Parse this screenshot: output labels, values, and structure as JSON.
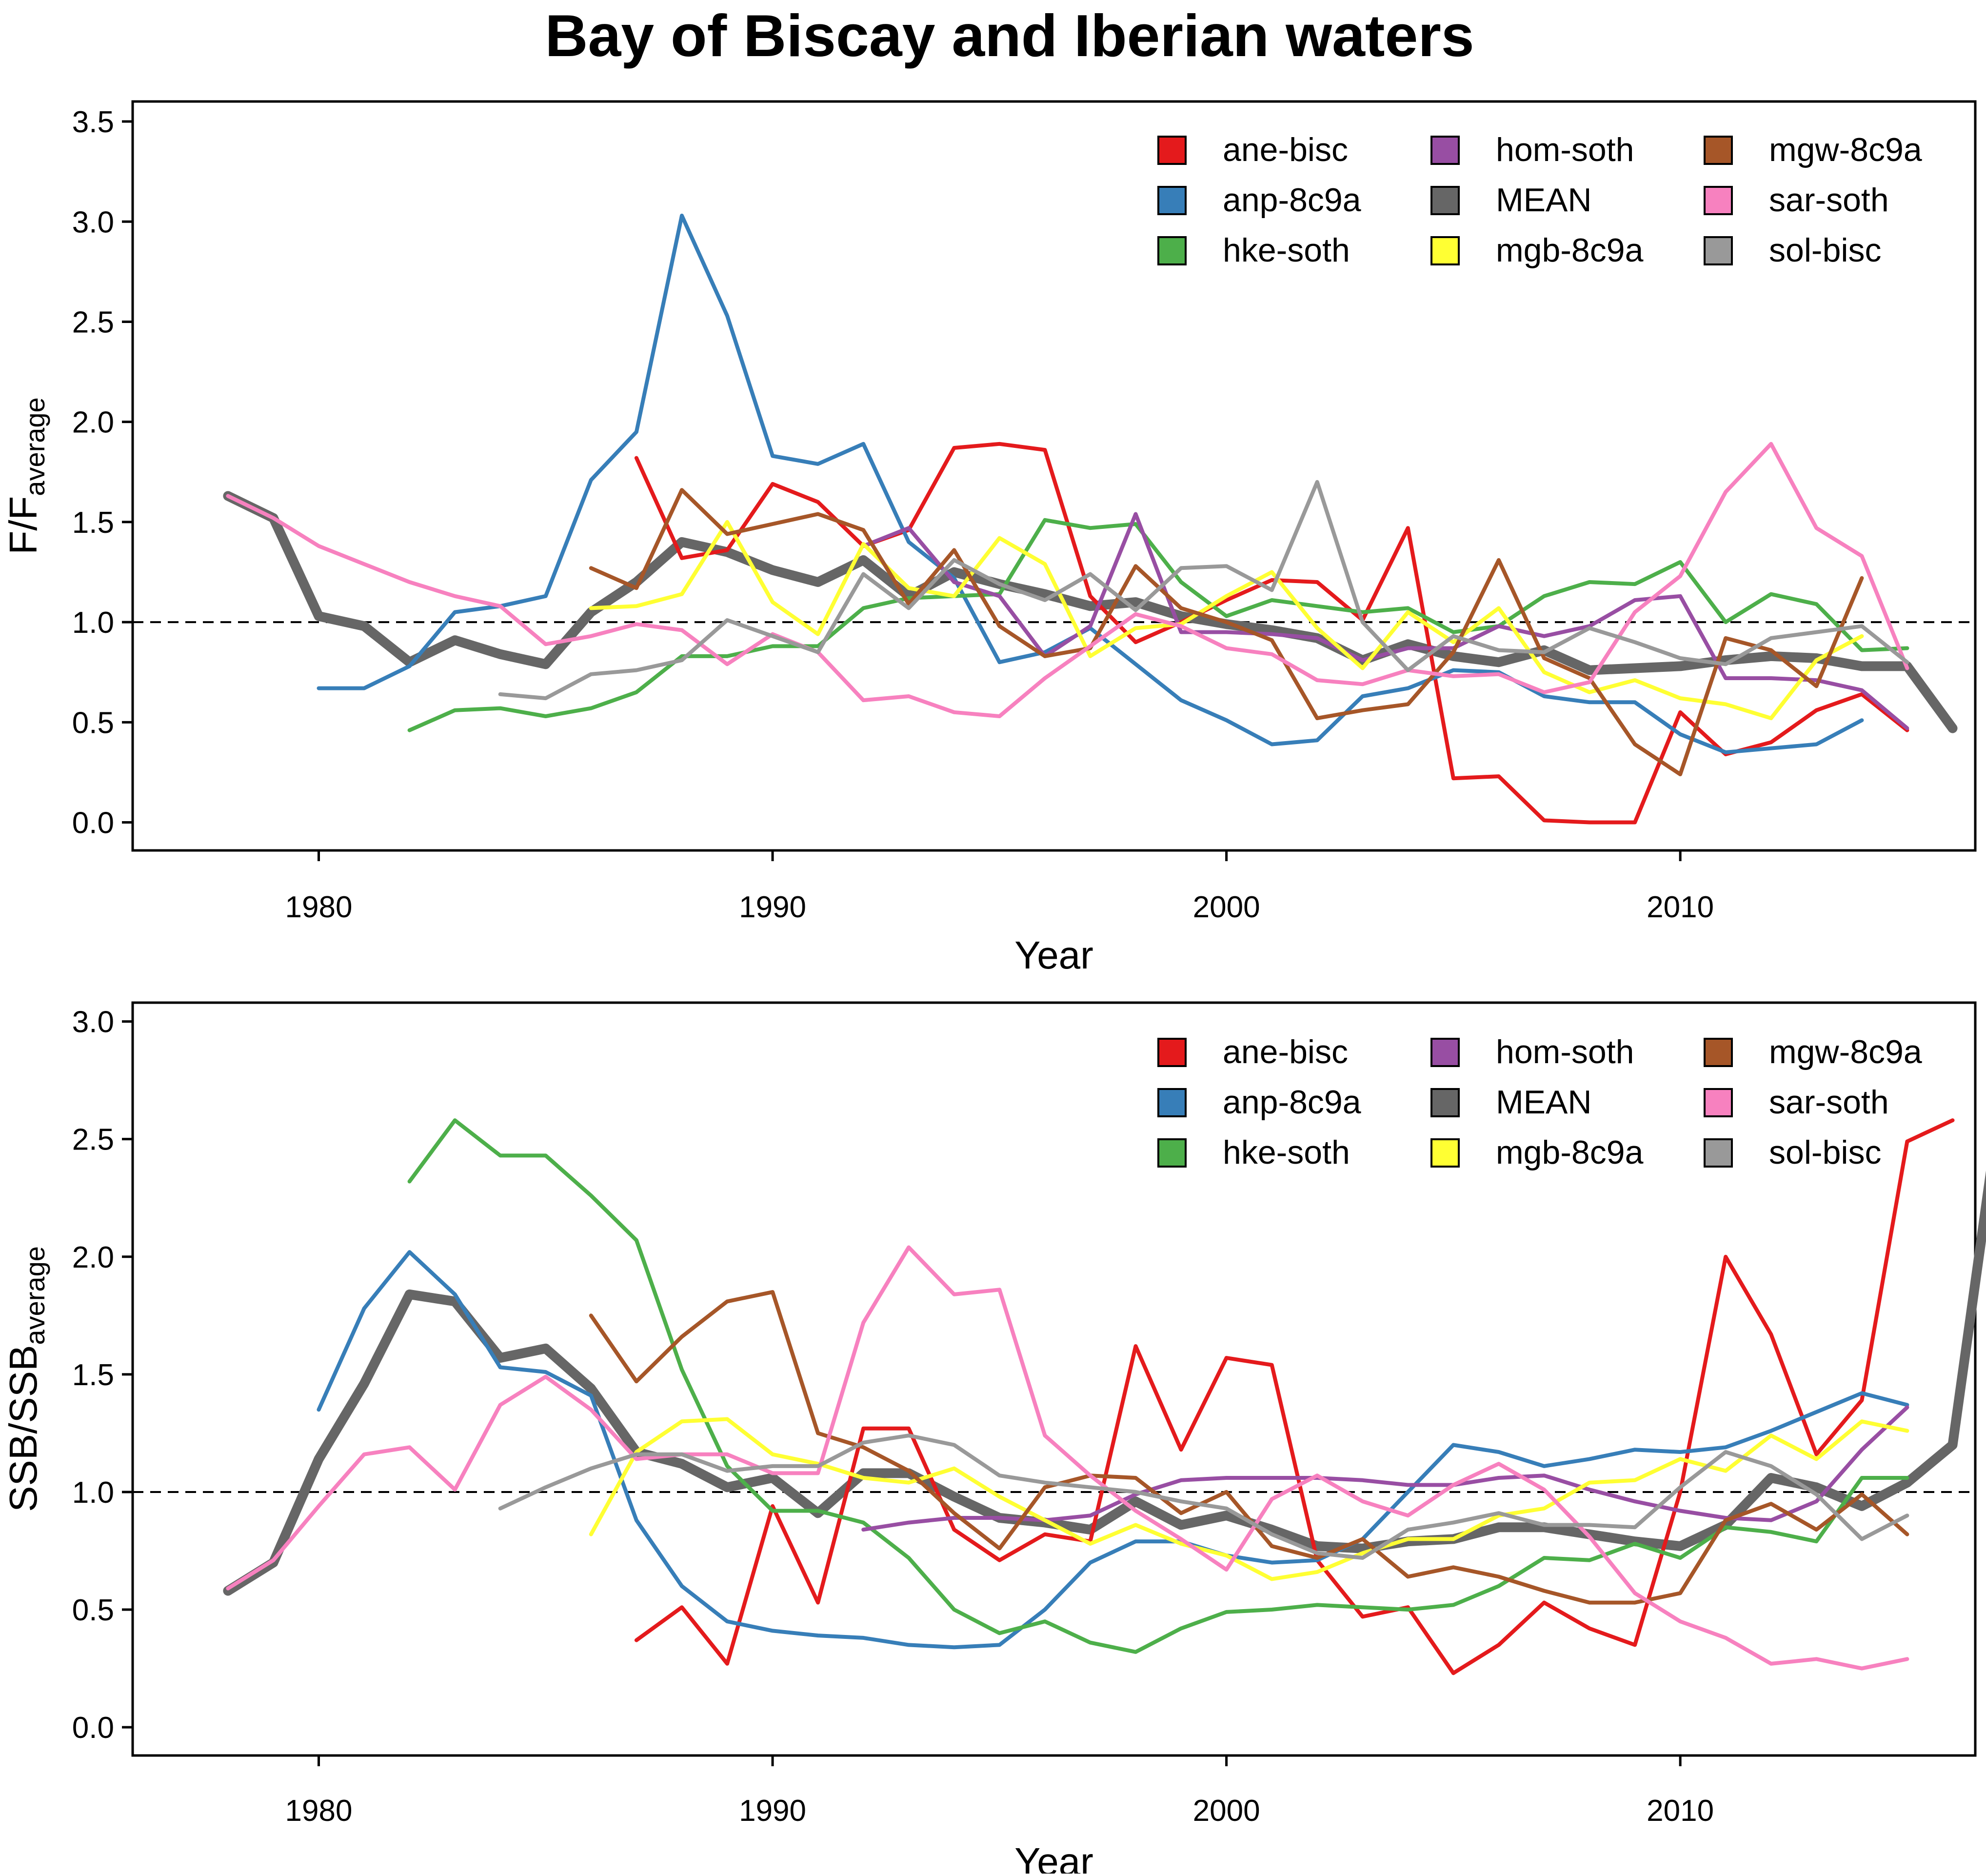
{
  "figure_title": "Bay of Biscay and Iberian waters",
  "colors": {
    "ane-bisc": "#e41a1c",
    "anp-8c9a": "#377eb8",
    "hke-soth": "#4daf4a",
    "hom-soth": "#984ea3",
    "MEAN": "#666666",
    "mgb-8c9a": "#ffff33",
    "mgw-8c9a": "#a65628",
    "sar-soth": "#f781bf",
    "sol-bisc": "#999999"
  },
  "legend": [
    "ane-bisc",
    "anp-8c9a",
    "hke-soth",
    "hom-soth",
    "MEAN",
    "mgb-8c9a",
    "mgw-8c9a",
    "sar-soth",
    "sol-bisc"
  ],
  "chart_data": [
    {
      "type": "line",
      "title": "",
      "xlabel": "Year",
      "ylabel_main": "F/F",
      "ylabel_sub": "average",
      "xlim": [
        1975.9,
        2016.5
      ],
      "ylim": [
        -0.14,
        3.6
      ],
      "xticks": [
        "1980",
        "1990",
        "2000",
        "2010"
      ],
      "yticks": [
        "0.0",
        "0.5",
        "1.0",
        "1.5",
        "2.0",
        "2.5",
        "3.0",
        "3.5"
      ],
      "reference_line": 1.0,
      "legend_position": "top-right",
      "series": [
        {
          "name": "ane-bisc",
          "start": 1987,
          "values": [
            1.82,
            1.32,
            1.36,
            1.69,
            1.6,
            1.38,
            1.46,
            1.87,
            1.89,
            1.86,
            1.13,
            0.9,
            1.0,
            1.11,
            1.21,
            1.2,
            1.01,
            1.47,
            0.22,
            0.23,
            0.01,
            0.0,
            0.0,
            0.55,
            0.34,
            0.4,
            0.56,
            0.64,
            0.46
          ]
        },
        {
          "name": "anp-8c9a",
          "start": 1980,
          "values": [
            0.67,
            0.67,
            0.78,
            1.05,
            1.08,
            1.13,
            1.71,
            1.95,
            3.03,
            2.53,
            1.83,
            1.79,
            1.89,
            1.4,
            1.22,
            0.8,
            0.85,
            0.97,
            0.79,
            0.61,
            0.51,
            0.39,
            0.41,
            0.63,
            0.67,
            0.76,
            0.75,
            0.63,
            0.6,
            0.6,
            0.44,
            0.35,
            0.37,
            0.39,
            0.51
          ]
        },
        {
          "name": "hke-soth",
          "start": 1982,
          "values": [
            0.46,
            0.56,
            0.57,
            0.53,
            0.57,
            0.65,
            0.83,
            0.83,
            0.88,
            0.88,
            1.07,
            1.12,
            1.13,
            1.14,
            1.51,
            1.47,
            1.49,
            1.2,
            1.03,
            1.11,
            1.08,
            1.05,
            1.07,
            0.95,
            0.98,
            1.13,
            1.2,
            1.19,
            1.3,
            1.0,
            1.14,
            1.09,
            0.86,
            0.87
          ]
        },
        {
          "name": "hom-soth",
          "start": 1992,
          "values": [
            1.38,
            1.47,
            1.2,
            1.13,
            0.83,
            0.98,
            1.54,
            0.95,
            0.95,
            0.94,
            0.92,
            0.81,
            0.87,
            0.87,
            0.98,
            0.93,
            0.98,
            1.11,
            1.13,
            0.72,
            0.72,
            0.71,
            0.66,
            0.47
          ]
        },
        {
          "name": "MEAN",
          "start": 1978,
          "values": [
            1.63,
            1.52,
            1.03,
            0.98,
            0.8,
            0.91,
            0.84,
            0.79,
            1.05,
            1.2,
            1.4,
            1.35,
            1.26,
            1.2,
            1.31,
            1.13,
            1.25,
            1.19,
            1.14,
            1.08,
            1.1,
            1.03,
            0.99,
            0.96,
            0.92,
            0.81,
            0.89,
            0.83,
            0.8,
            0.86,
            0.76,
            0.77,
            0.78,
            0.81,
            0.83,
            0.82,
            0.78,
            0.78,
            0.47
          ]
        },
        {
          "name": "mgb-8c9a",
          "start": 1986,
          "values": [
            1.07,
            1.08,
            1.14,
            1.5,
            1.1,
            0.94,
            1.39,
            1.17,
            1.13,
            1.42,
            1.29,
            0.83,
            0.97,
            0.99,
            1.13,
            1.25,
            0.97,
            0.77,
            1.05,
            0.9,
            1.07,
            0.75,
            0.65,
            0.71,
            0.62,
            0.59,
            0.52,
            0.81,
            0.93
          ]
        },
        {
          "name": "mgw-8c9a",
          "start": 1986,
          "values": [
            1.27,
            1.17,
            1.66,
            1.44,
            1.49,
            1.54,
            1.46,
            1.09,
            1.36,
            0.98,
            0.83,
            0.87,
            1.28,
            1.07,
            1.0,
            0.91,
            0.52,
            0.56,
            0.59,
            0.85,
            1.31,
            0.82,
            0.72,
            0.39,
            0.24,
            0.92,
            0.86,
            0.68,
            1.22
          ]
        },
        {
          "name": "sar-soth",
          "start": 1978,
          "values": [
            1.63,
            1.52,
            1.38,
            1.29,
            1.2,
            1.13,
            1.08,
            0.89,
            0.93,
            0.99,
            0.96,
            0.79,
            0.94,
            0.85,
            0.61,
            0.63,
            0.55,
            0.53,
            0.72,
            0.88,
            1.04,
            0.98,
            0.87,
            0.84,
            0.71,
            0.69,
            0.76,
            0.73,
            0.74,
            0.65,
            0.7,
            1.05,
            1.23,
            1.65,
            1.89,
            1.47,
            1.33,
            0.77
          ]
        },
        {
          "name": "sol-bisc",
          "start": 1984,
          "values": [
            0.64,
            0.62,
            0.74,
            0.76,
            0.81,
            1.01,
            0.93,
            0.85,
            1.24,
            1.07,
            1.31,
            1.19,
            1.11,
            1.24,
            1.06,
            1.27,
            1.28,
            1.16,
            1.7,
            1.0,
            0.76,
            0.93,
            0.86,
            0.85,
            0.97,
            0.9,
            0.82,
            0.79,
            0.92,
            0.95,
            0.98,
            0.8
          ]
        }
      ]
    },
    {
      "type": "line",
      "title": "",
      "xlabel": "Year",
      "ylabel_main": "SSB/SSB",
      "ylabel_sub": "average",
      "xlim": [
        1975.9,
        2016.5
      ],
      "ylim": [
        -0.12,
        3.08
      ],
      "xticks": [
        "1980",
        "1990",
        "2000",
        "2010"
      ],
      "yticks": [
        "0.0",
        "0.5",
        "1.0",
        "1.5",
        "2.0",
        "2.5",
        "3.0"
      ],
      "reference_line": 1.0,
      "legend_position": "top-right",
      "series": [
        {
          "name": "ane-bisc",
          "start": 1987,
          "values": [
            0.37,
            0.51,
            0.27,
            0.94,
            0.53,
            1.27,
            1.27,
            0.84,
            0.71,
            0.82,
            0.79,
            1.62,
            1.18,
            1.57,
            1.54,
            0.71,
            0.47,
            0.51,
            0.23,
            0.35,
            0.53,
            0.42,
            0.35,
            1.0,
            2.0,
            1.67,
            1.16,
            1.39,
            2.49,
            2.58
          ]
        },
        {
          "name": "anp-8c9a",
          "start": 1980,
          "values": [
            1.35,
            1.78,
            2.02,
            1.84,
            1.53,
            1.51,
            1.41,
            0.88,
            0.6,
            0.45,
            0.41,
            0.39,
            0.38,
            0.35,
            0.34,
            0.35,
            0.5,
            0.7,
            0.79,
            0.79,
            0.73,
            0.7,
            0.71,
            0.8,
            1.0,
            1.2,
            1.17,
            1.11,
            1.14,
            1.18,
            1.17,
            1.19,
            1.26,
            1.34,
            1.42,
            1.37
          ]
        },
        {
          "name": "hke-soth",
          "start": 1982,
          "values": [
            2.32,
            2.58,
            2.43,
            2.43,
            2.26,
            2.07,
            1.52,
            1.11,
            0.92,
            0.92,
            0.87,
            0.72,
            0.5,
            0.4,
            0.45,
            0.36,
            0.32,
            0.42,
            0.49,
            0.5,
            0.52,
            0.51,
            0.5,
            0.52,
            0.6,
            0.72,
            0.71,
            0.78,
            0.72,
            0.85,
            0.83,
            0.79,
            1.06,
            1.06
          ]
        },
        {
          "name": "hom-soth",
          "start": 1992,
          "values": [
            0.84,
            0.87,
            0.89,
            0.89,
            0.88,
            0.9,
            0.99,
            1.05,
            1.06,
            1.06,
            1.06,
            1.05,
            1.03,
            1.03,
            1.06,
            1.07,
            1.01,
            0.96,
            0.92,
            0.89,
            0.88,
            0.96,
            1.18,
            1.36
          ]
        },
        {
          "name": "MEAN",
          "start": 1978,
          "values": [
            0.58,
            0.7,
            1.14,
            1.46,
            1.84,
            1.81,
            1.57,
            1.61,
            1.44,
            1.17,
            1.12,
            1.02,
            1.06,
            0.91,
            1.08,
            1.08,
            0.98,
            0.89,
            0.87,
            0.84,
            0.96,
            0.86,
            0.9,
            0.84,
            0.77,
            0.76,
            0.79,
            0.8,
            0.85,
            0.85,
            0.82,
            0.79,
            0.77,
            0.86,
            1.06,
            1.02,
            0.94,
            1.04,
            1.2,
            2.58
          ]
        },
        {
          "name": "mgb-8c9a",
          "start": 1986,
          "values": [
            0.82,
            1.17,
            1.3,
            1.31,
            1.16,
            1.12,
            1.06,
            1.04,
            1.1,
            0.98,
            0.88,
            0.78,
            0.86,
            0.78,
            0.73,
            0.63,
            0.66,
            0.74,
            0.8,
            0.8,
            0.9,
            0.93,
            1.04,
            1.05,
            1.14,
            1.09,
            1.24,
            1.14,
            1.3,
            1.26
          ]
        },
        {
          "name": "mgw-8c9a",
          "start": 1986,
          "values": [
            1.75,
            1.47,
            1.66,
            1.81,
            1.85,
            1.25,
            1.19,
            1.09,
            0.91,
            0.76,
            1.02,
            1.07,
            1.06,
            0.91,
            1.0,
            0.77,
            0.72,
            0.8,
            0.64,
            0.68,
            0.64,
            0.58,
            0.53,
            0.53,
            0.57,
            0.88,
            0.95,
            0.84,
            0.99,
            0.82
          ]
        },
        {
          "name": "sar-soth",
          "start": 1978,
          "values": [
            0.59,
            0.71,
            0.94,
            1.16,
            1.19,
            1.01,
            1.37,
            1.49,
            1.35,
            1.14,
            1.16,
            1.16,
            1.08,
            1.08,
            1.72,
            2.04,
            1.84,
            1.86,
            1.24,
            1.07,
            0.92,
            0.8,
            0.67,
            0.97,
            1.07,
            0.96,
            0.9,
            1.03,
            1.12,
            1.01,
            0.81,
            0.57,
            0.45,
            0.38,
            0.27,
            0.29,
            0.25,
            0.29
          ]
        },
        {
          "name": "sol-bisc",
          "start": 1984,
          "values": [
            0.93,
            1.02,
            1.1,
            1.16,
            1.16,
            1.09,
            1.11,
            1.11,
            1.21,
            1.24,
            1.2,
            1.07,
            1.04,
            1.02,
            1.0,
            0.96,
            0.93,
            0.82,
            0.74,
            0.72,
            0.84,
            0.87,
            0.91,
            0.86,
            0.86,
            0.85,
            1.02,
            1.17,
            1.11,
            0.99,
            0.8,
            0.9
          ]
        }
      ]
    }
  ]
}
